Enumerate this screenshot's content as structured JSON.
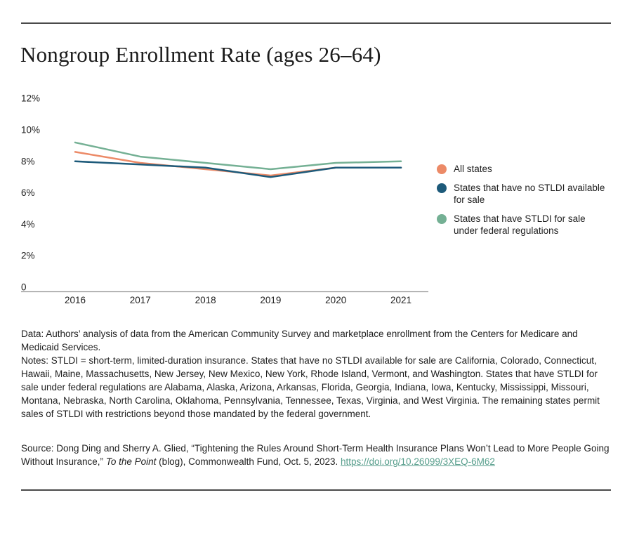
{
  "page": {
    "title": "Nongroup Enrollment Rate (ages 26–64)"
  },
  "chart_data": {
    "type": "line",
    "title": "Nongroup Enrollment Rate (ages 26–64)",
    "x": [
      "2016",
      "2017",
      "2018",
      "2019",
      "2020",
      "2021"
    ],
    "series": [
      {
        "name": "All states",
        "color": "#ec8a67",
        "values": [
          8.6,
          7.9,
          7.5,
          7.1,
          7.6,
          7.6
        ]
      },
      {
        "name": "States that have no STLDI available for sale",
        "color": "#1d5a7a",
        "values": [
          8.0,
          7.8,
          7.6,
          7.0,
          7.6,
          7.6
        ]
      },
      {
        "name": "States that have STLDI for sale under federal regulations",
        "color": "#74b094",
        "values": [
          9.2,
          8.3,
          7.9,
          7.5,
          7.9,
          8.0
        ]
      }
    ],
    "y_ticks": [
      "12%",
      "10%",
      "8%",
      "6%",
      "4%",
      "2%",
      "0"
    ],
    "y_tick_values": [
      12,
      10,
      8,
      6,
      4,
      2,
      0
    ],
    "ylim": [
      0,
      12
    ],
    "xlabel": "",
    "ylabel": "",
    "grid": false,
    "legend_position": "right",
    "axis_color": "#989898"
  },
  "footer": {
    "data_note": "Data: Authors’ analysis of data from the American Community Survey and marketplace enrollment from the Centers for Medicare and Medicaid Services.",
    "notes": "Notes: STLDI = short-term, limited-duration insurance. States that have no STLDI available for sale are California, Colorado, Connecticut, Hawaii, Maine, Massachusetts, New Jersey, New Mexico, New York, Rhode Island, Vermont, and Washington. States that have STLDI for sale under federal regulations are Alabama, Alaska, Arizona, Arkansas, Florida, Georgia, Indiana, Iowa, Kentucky, Mississippi, Missouri, Montana, Nebraska, North Carolina, Oklahoma, Pennsylvania, Tennessee, Texas, Virginia, and West Virginia. The remaining states permit sales of STLDI with restrictions beyond those mandated by the federal government.",
    "source": {
      "prefix": "Source: Dong Ding and Sherry A. Glied, “Tightening the Rules Around Short-Term Health Insurance Plans Won’t Lead to More People Going Without Insurance,” ",
      "publication": "To the Point",
      "suffix": " (blog), Commonwealth Fund, Oct. 5, 2023. ",
      "link_text": "https://doi.org/10.26099/3XEQ-6M62"
    }
  },
  "colors": {
    "rule": "#4a4a4a",
    "link": "#579e8c",
    "text": "#1e1e1e"
  }
}
